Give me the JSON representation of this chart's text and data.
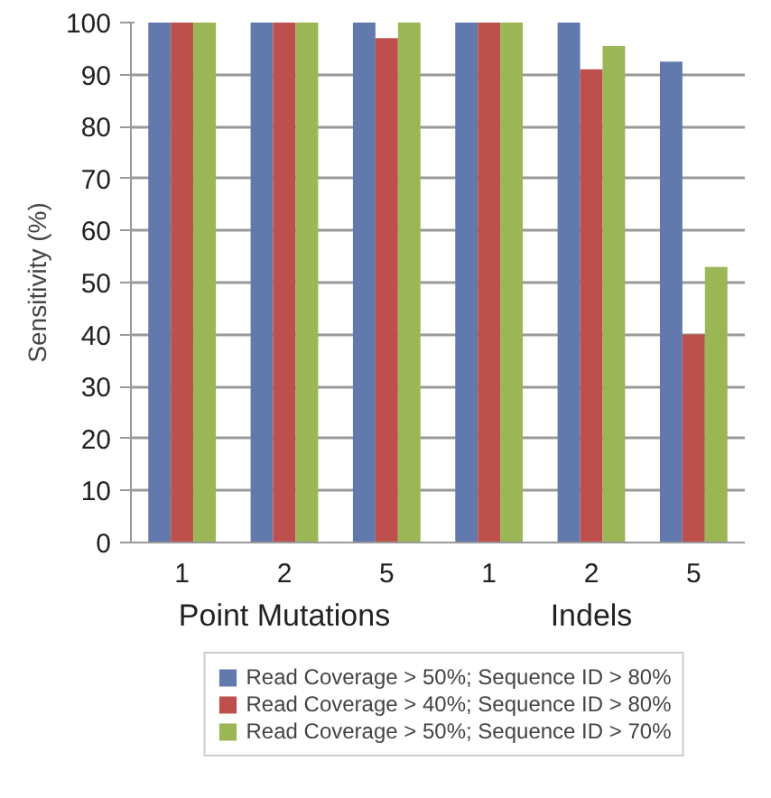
{
  "chart_data": {
    "type": "bar",
    "ylabel": "Sensitivity (%)",
    "categories": [
      "1",
      "2",
      "5",
      "1",
      "2",
      "5"
    ],
    "series": [
      {
        "name": "Read Coverage > 50%; Sequence ID > 80%",
        "color": "#6279ae",
        "values": [
          100,
          100,
          100,
          100,
          100,
          92.5
        ]
      },
      {
        "name": "Read Coverage > 40%; Sequence ID > 80%",
        "color": "#bd504d",
        "values": [
          100,
          100,
          97,
          100,
          91,
          40
        ]
      },
      {
        "name": "Read Coverage > 50%; Sequence ID > 70%",
        "color": "#9bb655",
        "values": [
          100,
          100,
          100,
          100,
          95.5,
          53
        ]
      }
    ],
    "annotations": [
      "Point Mutations",
      "Indels"
    ],
    "ylim": [
      0,
      100
    ],
    "yticks": [
      0,
      10,
      20,
      30,
      40,
      50,
      60,
      70,
      80,
      90,
      100
    ],
    "grid": "y",
    "legend": "bottom"
  }
}
